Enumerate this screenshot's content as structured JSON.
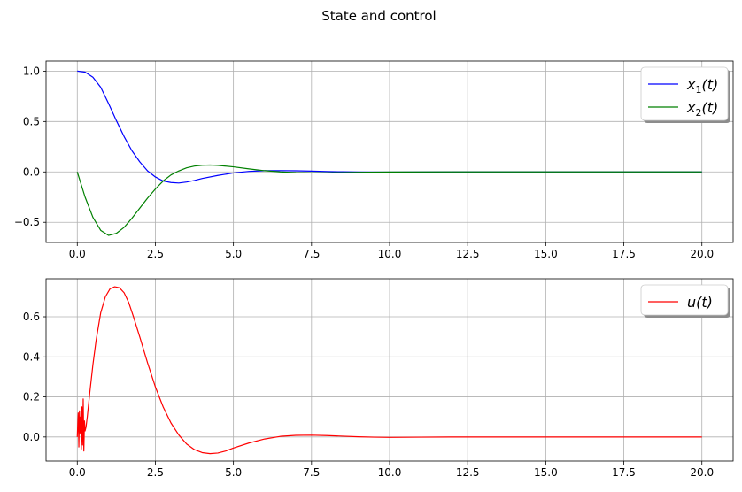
{
  "figure": {
    "title": "State and control"
  },
  "chart_data": [
    {
      "type": "line",
      "title": "",
      "xlabel": "",
      "ylabel": "",
      "xlim": [
        -1.0,
        21.0
      ],
      "ylim": [
        -0.7,
        1.1
      ],
      "xticks": [
        0.0,
        2.5,
        5.0,
        7.5,
        10.0,
        12.5,
        15.0,
        17.5,
        20.0
      ],
      "xtick_labels": [
        "0.0",
        "2.5",
        "5.0",
        "7.5",
        "10.0",
        "12.5",
        "15.0",
        "17.5",
        "20.0"
      ],
      "yticks": [
        1.0,
        0.5,
        0.0,
        -0.5
      ],
      "ytick_labels": [
        "1.0",
        "0.5",
        "0.0",
        "−0.5"
      ],
      "grid": true,
      "legend_position": "top-right",
      "series": [
        {
          "name": "x1(t)",
          "legend_base": "x",
          "legend_sub": "1",
          "legend_suffix": "(t)",
          "color": "#0000ff",
          "x": [
            0,
            0.25,
            0.5,
            0.75,
            1.0,
            1.25,
            1.5,
            1.75,
            2.0,
            2.25,
            2.5,
            2.75,
            3.0,
            3.25,
            3.5,
            3.75,
            4.0,
            4.5,
            5.0,
            5.5,
            6.0,
            6.5,
            7.0,
            7.5,
            8.0,
            8.5,
            9.0,
            10.0,
            12.0,
            15.0,
            20.0
          ],
          "y": [
            1.0,
            0.99,
            0.94,
            0.84,
            0.68,
            0.51,
            0.35,
            0.21,
            0.1,
            0.01,
            -0.05,
            -0.09,
            -0.105,
            -0.11,
            -0.1,
            -0.085,
            -0.065,
            -0.035,
            -0.01,
            0.005,
            0.012,
            0.013,
            0.011,
            0.008,
            0.004,
            0.001,
            -0.001,
            -0.002,
            0.0,
            0.0,
            0.0
          ]
        },
        {
          "name": "x2(t)",
          "legend_base": "x",
          "legend_sub": "2",
          "legend_suffix": "(t)",
          "color": "#008000",
          "x": [
            0,
            0.25,
            0.5,
            0.75,
            1.0,
            1.25,
            1.5,
            1.75,
            2.0,
            2.25,
            2.5,
            2.75,
            3.0,
            3.25,
            3.5,
            3.75,
            4.0,
            4.25,
            4.5,
            5.0,
            5.5,
            6.0,
            6.5,
            7.0,
            7.5,
            8.0,
            9.0,
            10.0,
            12.0,
            15.0,
            20.0
          ],
          "y": [
            0.0,
            -0.25,
            -0.45,
            -0.58,
            -0.63,
            -0.61,
            -0.55,
            -0.46,
            -0.36,
            -0.26,
            -0.17,
            -0.09,
            -0.03,
            0.01,
            0.04,
            0.058,
            0.066,
            0.068,
            0.065,
            0.05,
            0.03,
            0.012,
            0.0,
            -0.007,
            -0.009,
            -0.008,
            -0.004,
            -0.001,
            0.0,
            0.0,
            0.0
          ]
        }
      ]
    },
    {
      "type": "line",
      "title": "",
      "xlabel": "",
      "ylabel": "",
      "xlim": [
        -1.0,
        21.0
      ],
      "ylim": [
        -0.12,
        0.79
      ],
      "xticks": [
        0.0,
        2.5,
        5.0,
        7.5,
        10.0,
        12.5,
        15.0,
        17.5,
        20.0
      ],
      "xtick_labels": [
        "0.0",
        "2.5",
        "5.0",
        "7.5",
        "10.0",
        "12.5",
        "15.0",
        "17.5",
        "20.0"
      ],
      "yticks": [
        0.6,
        0.4,
        0.2,
        0.0
      ],
      "ytick_labels": [
        "0.6",
        "0.4",
        "0.2",
        "0.0"
      ],
      "grid": true,
      "legend_position": "top-right",
      "series": [
        {
          "name": "u(t)",
          "legend_base": "u",
          "legend_sub": "",
          "legend_suffix": "(t)",
          "color": "#ff0000",
          "x": [
            0,
            0.03,
            0.05,
            0.07,
            0.09,
            0.11,
            0.13,
            0.15,
            0.17,
            0.19,
            0.21,
            0.23,
            0.25,
            0.28,
            0.32,
            0.4,
            0.5,
            0.6,
            0.75,
            0.9,
            1.05,
            1.2,
            1.35,
            1.5,
            1.65,
            1.8,
            2.0,
            2.25,
            2.5,
            2.75,
            3.0,
            3.25,
            3.5,
            3.75,
            4.0,
            4.25,
            4.5,
            4.75,
            5.0,
            5.5,
            6.0,
            6.5,
            7.0,
            7.5,
            8.0,
            8.5,
            9.0,
            9.5,
            10.0,
            11.0,
            12.0,
            15.0,
            20.0
          ],
          "y": [
            0.0,
            0.12,
            -0.05,
            0.13,
            0.02,
            0.1,
            -0.06,
            0.15,
            -0.04,
            0.19,
            -0.07,
            0.08,
            0.03,
            0.05,
            0.1,
            0.22,
            0.36,
            0.48,
            0.62,
            0.7,
            0.74,
            0.75,
            0.745,
            0.72,
            0.67,
            0.6,
            0.5,
            0.37,
            0.25,
            0.15,
            0.07,
            0.01,
            -0.035,
            -0.063,
            -0.078,
            -0.083,
            -0.08,
            -0.07,
            -0.055,
            -0.03,
            -0.01,
            0.003,
            0.008,
            0.009,
            0.007,
            0.004,
            0.001,
            -0.001,
            -0.002,
            -0.001,
            0.0,
            0.0,
            0.0
          ]
        }
      ]
    }
  ]
}
